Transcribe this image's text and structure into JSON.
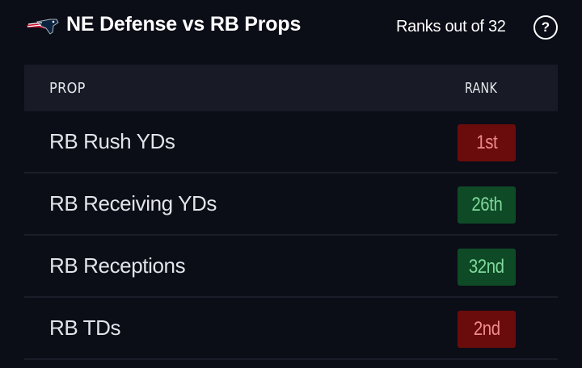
{
  "header": {
    "logo_icon": "patriots-logo-icon",
    "title": "NE Defense vs RB Props",
    "ranks_note": "Ranks out of 32",
    "help_label": "?"
  },
  "table": {
    "columns": {
      "prop": "PROP",
      "rank": "RANK"
    },
    "rows": [
      {
        "prop": "RB Rush YDs",
        "rank": "1st",
        "status": "bad"
      },
      {
        "prop": "RB Receiving YDs",
        "rank": "26th",
        "status": "good"
      },
      {
        "prop": "RB Receptions",
        "rank": "32nd",
        "status": "good"
      },
      {
        "prop": "RB TDs",
        "rank": "2nd",
        "status": "bad"
      }
    ]
  },
  "colors": {
    "background": "#0b0d17",
    "header_row": "#181a25",
    "bad_bg": "#6b0c0c",
    "bad_text": "#f08a8a",
    "good_bg": "#0e4a26",
    "good_text": "#7fd89a"
  }
}
